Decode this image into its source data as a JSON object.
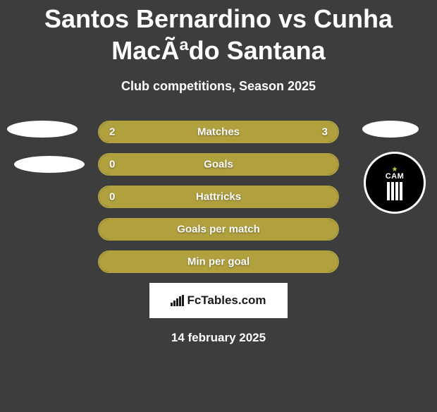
{
  "title": "Santos Bernardino vs Cunha MacÃªdo Santana",
  "subtitle": "Club competitions, Season 2025",
  "colors": {
    "background": "#3d3d3d",
    "bar_fill": "#b0a03e",
    "bar_border": "#b0a03e",
    "text": "#ffffff",
    "footer_bg": "#ffffff",
    "footer_text": "#1a1a1a"
  },
  "stats": [
    {
      "label": "Matches",
      "left_val": "2",
      "right_val": "3",
      "left_pct": 40,
      "right_pct": 60
    },
    {
      "label": "Goals",
      "left_val": "0",
      "right_val": "",
      "left_pct": 0,
      "right_pct": 100
    },
    {
      "label": "Hattricks",
      "left_val": "0",
      "right_val": "",
      "left_pct": 0,
      "right_pct": 100
    },
    {
      "label": "Goals per match",
      "left_val": "",
      "right_val": "",
      "left_pct": 0,
      "right_pct": 100
    },
    {
      "label": "Min per goal",
      "left_val": "",
      "right_val": "",
      "left_pct": 0,
      "right_pct": 100
    }
  ],
  "right_badge_text": "CAM",
  "footer_brand": "FcTables.com",
  "footer_date": "14 february 2025"
}
